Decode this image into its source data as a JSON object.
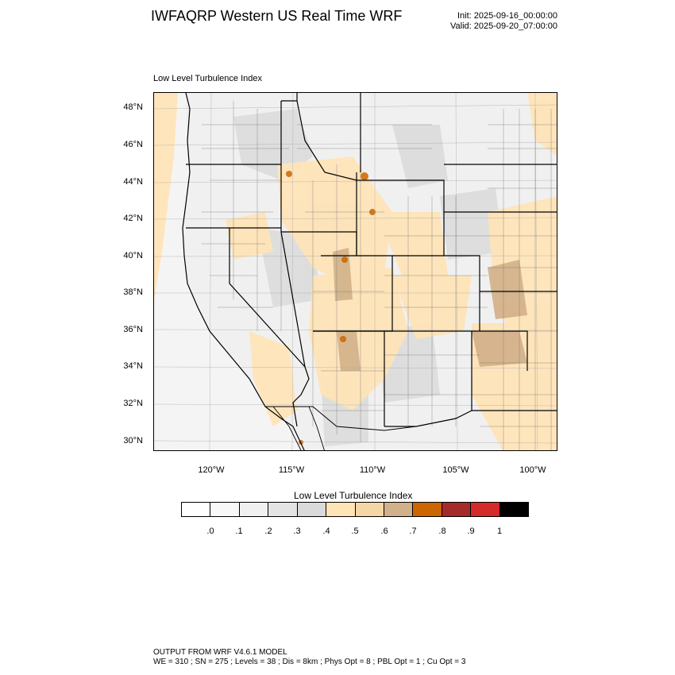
{
  "header": {
    "title": "IWFAQRP Western US Real Time WRF",
    "init": "Init: 2025-09-16_00:00:00",
    "valid": "Valid: 2025-09-20_07:00:00"
  },
  "map": {
    "subtitle": "Low Level Turbulence Index",
    "lat_labels": [
      "48°N",
      "46°N",
      "44°N",
      "42°N",
      "40°N",
      "38°N",
      "36°N",
      "34°N",
      "32°N",
      "30°N"
    ],
    "lon_labels": [
      "120°W",
      "115°W",
      "110°W",
      "105°W",
      "100°W"
    ],
    "colors": {
      "ocean": "#f4f4f4",
      "land_low": "#f0f0f0",
      "land_mid": "#dcdcdc",
      "tan_light": "#ffe4b8",
      "tan": "#f5d7a6",
      "brown": "#c8a37a",
      "orange": "#cc6600",
      "dark_red": "#a52a2a"
    }
  },
  "colorbar": {
    "title": "Low Level Turbulence Index",
    "colors": [
      "#ffffff",
      "#f8f8f8",
      "#f0f0f0",
      "#e4e4e4",
      "#dadada",
      "#ffe4b8",
      "#f5d7a6",
      "#d2b08a",
      "#cc6600",
      "#a52a2a",
      "#d42a2a",
      "#000000"
    ],
    "labels": [
      ".0",
      ".1",
      ".2",
      ".3",
      ".4",
      ".5",
      ".6",
      ".7",
      ".8",
      ".9",
      "1"
    ]
  },
  "footer": {
    "line1": "OUTPUT FROM WRF V4.6.1 MODEL",
    "line2": "WE = 310 ; SN = 275 ; Levels = 38 ; Dis = 8km ; Phys Opt = 8 ; PBL Opt = 1 ; Cu Opt = 3"
  }
}
